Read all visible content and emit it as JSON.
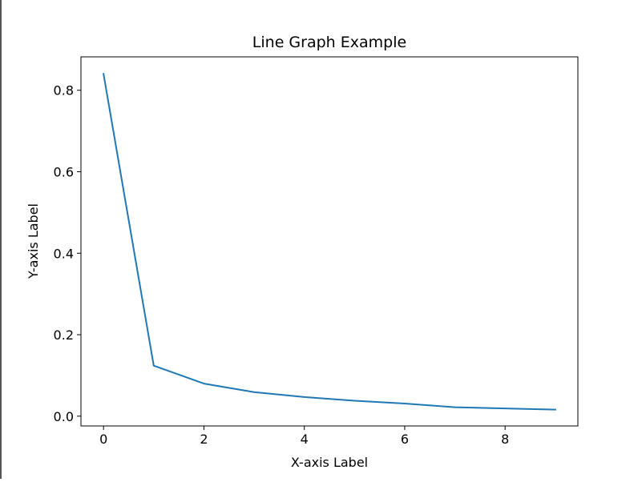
{
  "chart_data": {
    "type": "line",
    "title": "Line Graph Example",
    "xlabel": "X-axis Label",
    "ylabel": "Y-axis Label",
    "x": [
      0,
      1,
      2,
      3,
      4,
      5,
      6,
      7,
      8,
      9
    ],
    "series": [
      {
        "values": [
          0.84,
          0.124,
          0.08,
          0.059,
          0.047,
          0.038,
          0.031,
          0.022,
          0.019,
          0.016
        ]
      }
    ],
    "xlim": [
      -0.45,
      9.45
    ],
    "ylim": [
      -0.024,
      0.882
    ],
    "xticks": [
      0,
      2,
      4,
      6,
      8
    ],
    "xtick_labels": [
      "0",
      "2",
      "4",
      "6",
      "8"
    ],
    "yticks": [
      0.0,
      0.2,
      0.4,
      0.6,
      0.8
    ],
    "ytick_labels": [
      "0.0",
      "0.2",
      "0.4",
      "0.6",
      "0.8"
    ],
    "grid": false,
    "line_color": "#1f77b4"
  }
}
